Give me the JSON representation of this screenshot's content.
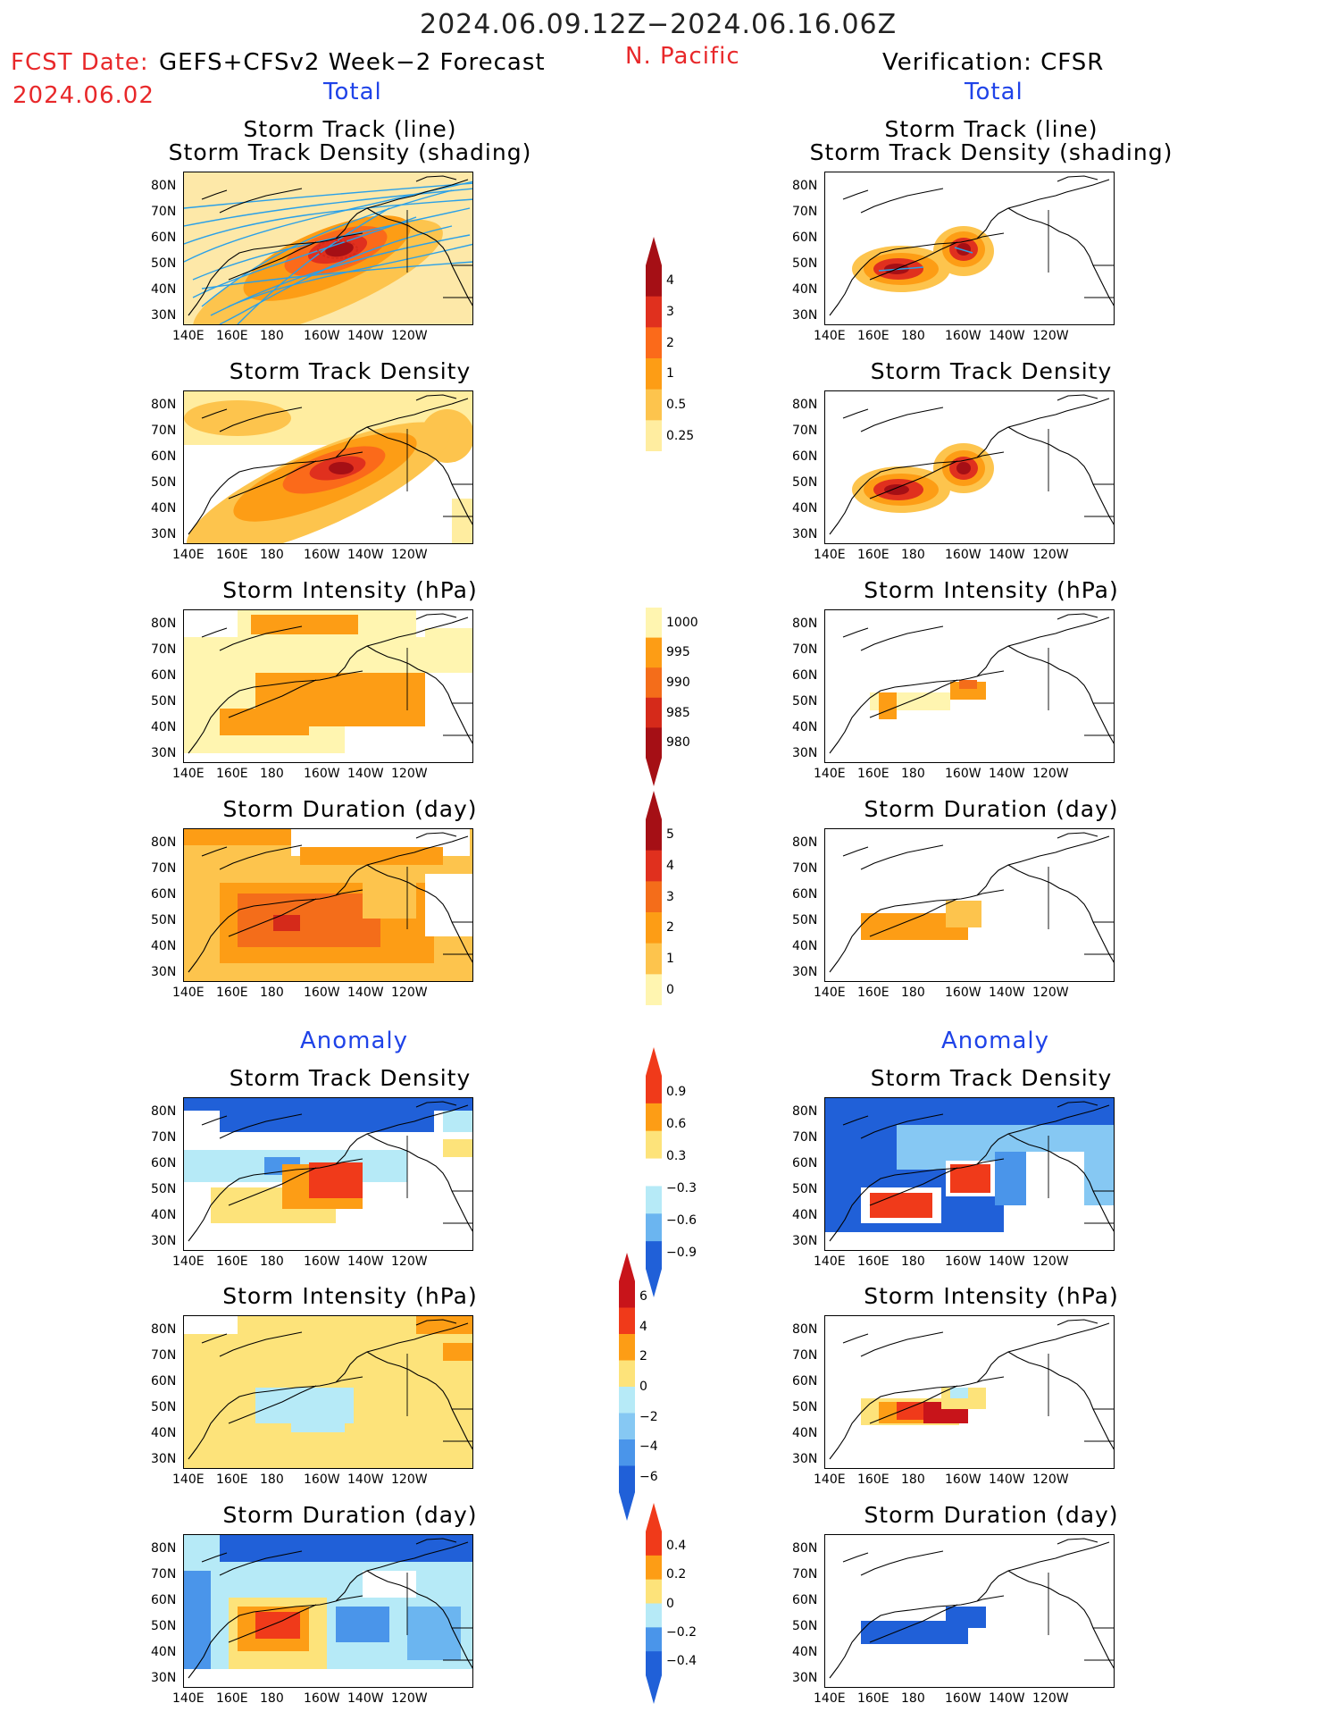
{
  "header": {
    "period": "2024.06.09.12Z−2024.06.16.06Z",
    "fcst_label": "FCST Date:",
    "fcst_model": "GEFS+CFSv2 Week−2 Forecast",
    "fcst_date": "2024.06.02",
    "region": "N. Pacific",
    "verification": "Verification: CFSR",
    "left_section": "Total",
    "right_section": "Total",
    "left_anomaly": "Anomaly",
    "right_anomaly": "Anomaly"
  },
  "panels": {
    "left": [
      {
        "title1": "Storm Track (line)",
        "title2": "Storm Track Density (shading)"
      },
      {
        "title1": "Storm Track Density"
      },
      {
        "title1": "Storm Intensity (hPa)"
      },
      {
        "title1": "Storm Duration (day)"
      },
      {
        "title1": "Storm Track Density"
      },
      {
        "title1": "Storm Intensity (hPa)"
      },
      {
        "title1": "Storm Duration (day)"
      }
    ],
    "right": [
      {
        "title1": "Storm Track (line)",
        "title2": "Storm Track Density (shading)"
      },
      {
        "title1": "Storm Track Density"
      },
      {
        "title1": "Storm Intensity (hPa)"
      },
      {
        "title1": "Storm Duration (day)"
      },
      {
        "title1": "Storm Track Density"
      },
      {
        "title1": "Storm Intensity (hPa)"
      },
      {
        "title1": "Storm Duration (day)"
      }
    ]
  },
  "axes": {
    "lat_labels": [
      "80N",
      "70N",
      "60N",
      "50N",
      "40N",
      "30N"
    ],
    "lon_labels": [
      "140E",
      "160E",
      "180",
      "160W",
      "140W",
      "120W"
    ]
  },
  "colorbars": [
    {
      "name": "density-total",
      "labels": [
        "4",
        "3",
        "2",
        "1",
        "0.5",
        "0.25"
      ],
      "colors": [
        "#a50f15",
        "#e0301e",
        "#fb6a1a",
        "#fd9d15",
        "#fdc44d",
        "#ffeda0"
      ]
    },
    {
      "name": "intensity-total",
      "labels": [
        "1000",
        "995",
        "990",
        "985",
        "980"
      ],
      "colors": [
        "#fff5b0",
        "#fd9d15",
        "#f46d1a",
        "#d52a1a",
        "#a50f15"
      ]
    },
    {
      "name": "duration-total",
      "labels": [
        "5",
        "4",
        "3",
        "2",
        "1",
        "0"
      ],
      "colors": [
        "#a50f15",
        "#e0301e",
        "#f46d1a",
        "#fd9d15",
        "#fdc44d",
        "#fff5b0"
      ]
    },
    {
      "name": "density-anomaly",
      "labels": [
        "0.9",
        "0.6",
        "0.3",
        "−0.3",
        "−0.6",
        "−0.9"
      ],
      "colors": [
        "#f03a1a",
        "#fd9d15",
        "#fde37a",
        "#ffffff",
        "#b6eaf7",
        "#6bb5f0",
        "#2060d8"
      ]
    },
    {
      "name": "intensity-anomaly",
      "labels": [
        "6",
        "4",
        "2",
        "0",
        "−2",
        "−4",
        "−6"
      ],
      "colors": [
        "#c8141a",
        "#f03a1a",
        "#fd9d15",
        "#fde37a",
        "#b6eaf7",
        "#86c8f3",
        "#4a95ea",
        "#2060d8"
      ]
    },
    {
      "name": "duration-anomaly",
      "labels": [
        "0.4",
        "0.2",
        "0",
        "−0.2",
        "−0.4"
      ],
      "colors": [
        "#f03a1a",
        "#fd9d15",
        "#fde37a",
        "#b6eaf7",
        "#4a95ea",
        "#2060d8"
      ]
    }
  ],
  "palette": {
    "land": "#000000",
    "track_line": "#2aa0e8"
  }
}
